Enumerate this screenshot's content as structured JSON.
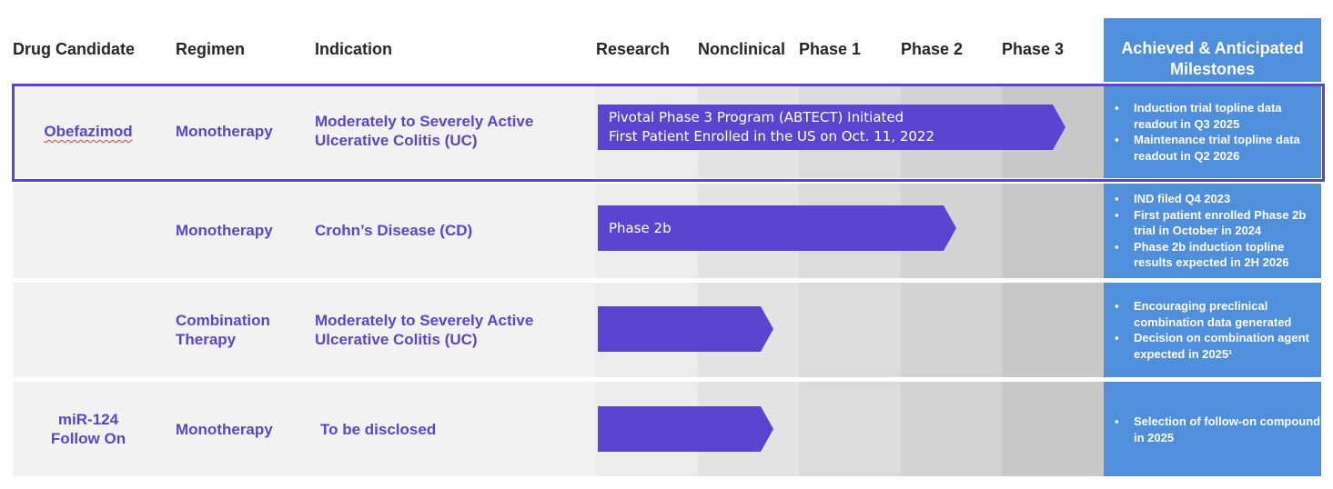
{
  "headers": {
    "drug_candidate": "Drug Candidate",
    "regimen": "Regimen",
    "indication": "Indication",
    "research": "Research",
    "nonclinical": "Nonclinical",
    "phase1": "Phase 1",
    "phase2": "Phase 2",
    "phase3": "Phase 3",
    "milestones": "Achieved & Anticipated Milestones"
  },
  "colors": {
    "accent_purple": "#5b45c8",
    "arrow_purple": "#5b45d0",
    "milestone_blue": "#4f8fdb"
  },
  "rows": [
    {
      "drug": "Obefazimod",
      "regimen": "Monotherapy",
      "indication": "Moderately to Severely Active Ulcerative Colitis (UC)",
      "arrow_text": [
        "Pivotal Phase 3 Program (ABTECT) Initiated",
        "First Patient Enrolled in the US on Oct. 11, 2022"
      ],
      "stage_reached": "Phase 3",
      "milestones": [
        "Induction trial topline data readout in Q3 2025",
        "Maintenance trial topline data readout in Q2 2026"
      ]
    },
    {
      "drug": "",
      "regimen": "Monotherapy",
      "indication": "Crohn’s Disease (CD)",
      "arrow_text": [
        "Phase 2b"
      ],
      "stage_reached": "Phase 2",
      "milestones": [
        "IND filed Q4 2023",
        "First patient enrolled Phase 2b trial in October in 2024",
        "Phase 2b induction topline results expected in 2H 2026"
      ]
    },
    {
      "drug": "",
      "regimen": "Combination Therapy",
      "indication": "Moderately to Severely Active Ulcerative Colitis (UC)",
      "arrow_text": [],
      "stage_reached": "Research",
      "milestones": [
        "Encouraging preclinical combination data generated",
        "Decision on combination agent expected in 2025¹"
      ]
    },
    {
      "drug": "miR-124 Follow On",
      "regimen": "Monotherapy",
      "indication": "To be disclosed",
      "arrow_text": [],
      "stage_reached": "Research",
      "milestones": [
        "Selection of follow-on compound in 2025"
      ]
    }
  ]
}
